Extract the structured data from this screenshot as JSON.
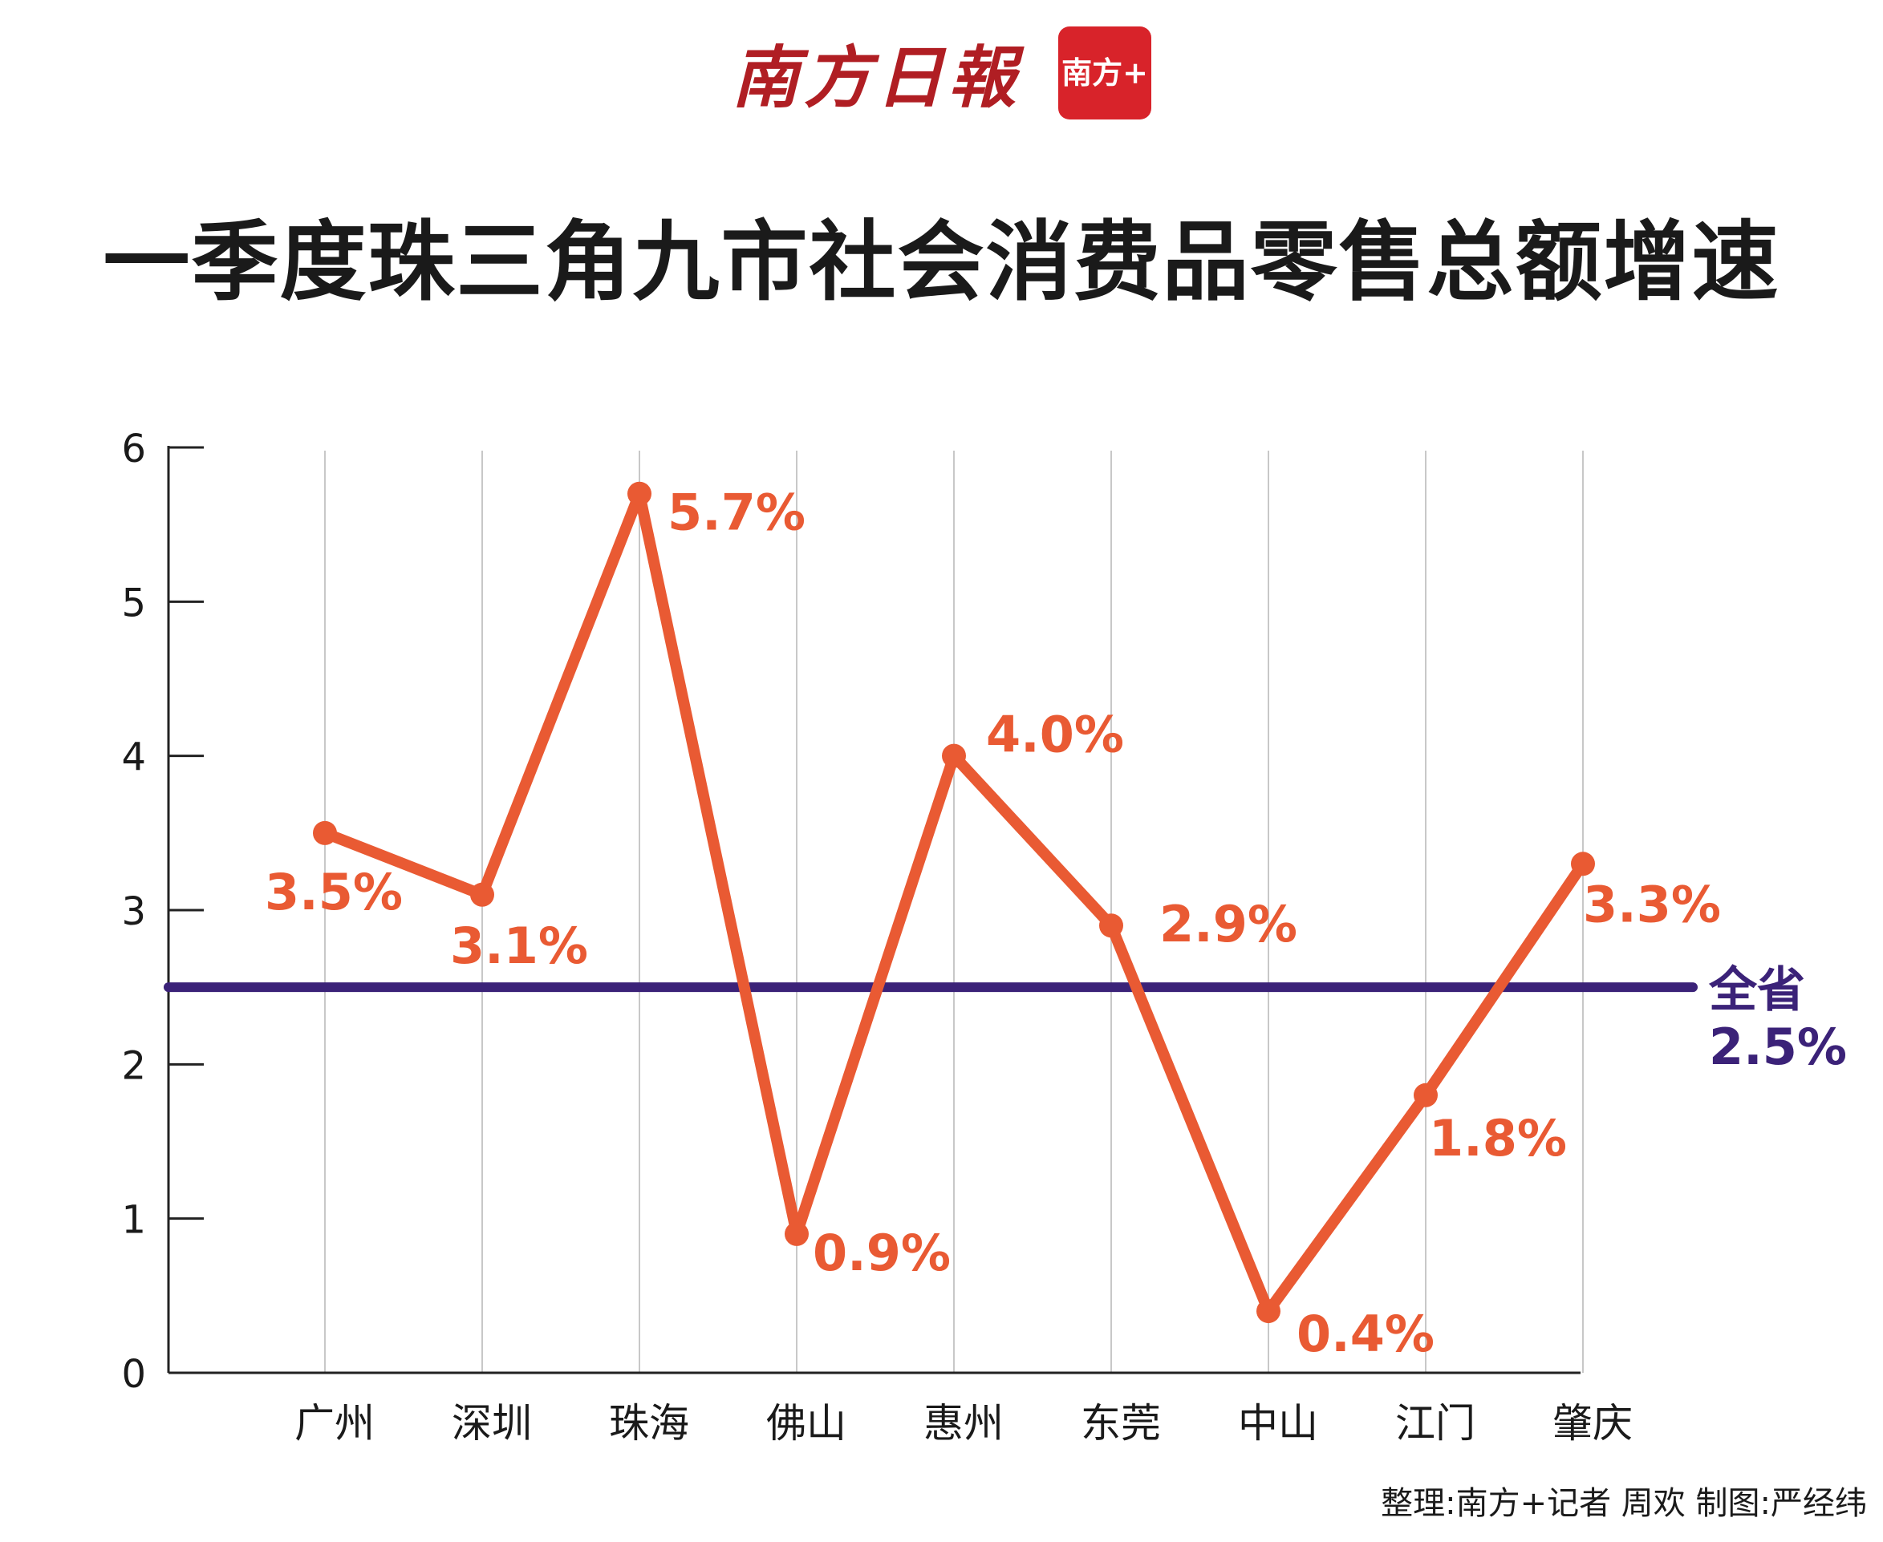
{
  "brand": {
    "name": "南方日報",
    "logo_text": "南方+"
  },
  "title": "一季度珠三角九市社会消费品零售总额增速",
  "credit": "整理:南方+记者 周欢  制图:严经纬",
  "colors": {
    "series": "#e95a33",
    "reference": "#3b2278",
    "grid": "#c8c8c8",
    "axis": "#222222",
    "text": "#1a1a1a"
  },
  "chart_data": {
    "type": "line",
    "categories": [
      "广州",
      "深圳",
      "珠海",
      "佛山",
      "惠州",
      "东莞",
      "中山",
      "江门",
      "肇庆"
    ],
    "series": [
      {
        "values": [
          3.5,
          3.1,
          5.7,
          0.9,
          4.0,
          2.9,
          0.4,
          1.8,
          3.3
        ],
        "labels": [
          "3.5%",
          "3.1%",
          "5.7%",
          "0.9%",
          "4.0%",
          "2.9%",
          "0.4%",
          "1.8%",
          "3.3%"
        ]
      }
    ],
    "reference_line": {
      "label": "全省",
      "value": 2.5,
      "value_label": "2.5%"
    },
    "ylim": [
      0,
      6
    ],
    "yticks": [
      "0",
      "1",
      "2",
      "3",
      "4",
      "5",
      "6"
    ],
    "grid": "vertical"
  }
}
